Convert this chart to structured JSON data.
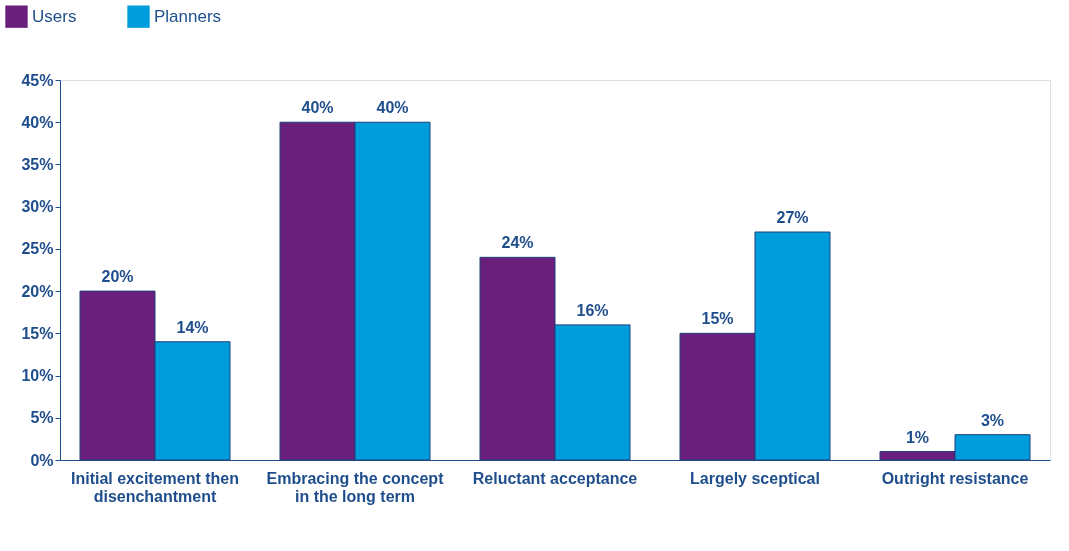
{
  "chart_data": {
    "type": "bar",
    "categories": [
      "Initial excitement then disenchantment",
      "Embracing the concept in the long term",
      "Reluctant acceptance",
      "Largely sceptical",
      "Outright resistance"
    ],
    "series": [
      {
        "name": "Users",
        "color": "#6b1f7c",
        "values": [
          20,
          40,
          24,
          15,
          1
        ],
        "value_labels": [
          "20%",
          "40%",
          "24%",
          "15%",
          "1%"
        ]
      },
      {
        "name": "Planners",
        "color": "#009ddc",
        "values": [
          14,
          40,
          16,
          27,
          3
        ],
        "value_labels": [
          "14%",
          "40%",
          "16%",
          "27%",
          "3%"
        ]
      }
    ],
    "ylim": [
      0,
      45
    ],
    "yticks": [
      {
        "value": 0,
        "label": "0%"
      },
      {
        "value": 5,
        "label": "5%"
      },
      {
        "value": 10,
        "label": "10%"
      },
      {
        "value": 15,
        "label": "15%"
      },
      {
        "value": 20,
        "label": "20%"
      },
      {
        "value": 25,
        "label": "25%"
      },
      {
        "value": 30,
        "label": "30%"
      },
      {
        "value": 35,
        "label": "35%"
      },
      {
        "value": 40,
        "label": "40%"
      },
      {
        "value": 45,
        "label": "45%"
      }
    ],
    "grid": false,
    "legend": "top left"
  }
}
